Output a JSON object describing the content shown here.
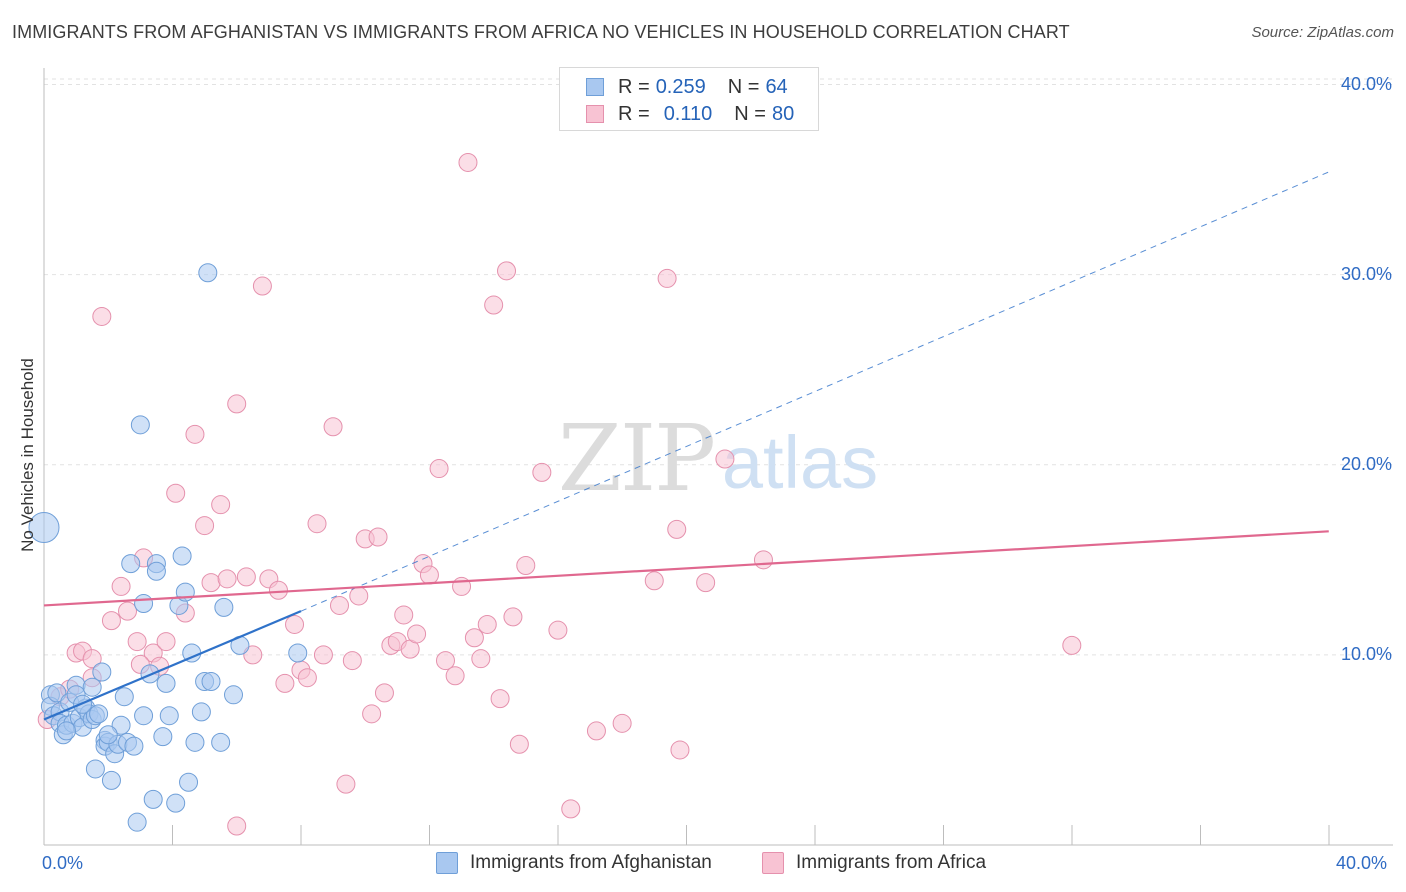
{
  "title": "IMMIGRANTS FROM AFGHANISTAN VS IMMIGRANTS FROM AFRICA NO VEHICLES IN HOUSEHOLD CORRELATION CHART",
  "source": "Source: ZipAtlas.com",
  "watermark": {
    "zip": "ZIP",
    "atlas": "atlas"
  },
  "legend": {
    "rows": [
      {
        "r_label": "R =",
        "r_value": "0.259",
        "n_label": "N =",
        "n_value": "64",
        "color": "#a9c8f0",
        "border": "#6f9fd8"
      },
      {
        "r_label": "R =",
        "r_value": "0.110",
        "n_label": "N =",
        "n_value": "80",
        "color": "#f8c3d3",
        "border": "#e591ad"
      }
    ]
  },
  "chart_data": {
    "type": "scatter",
    "title": "IMMIGRANTS FROM AFGHANISTAN VS IMMIGRANTS FROM AFRICA NO VEHICLES IN HOUSEHOLD CORRELATION CHART",
    "xlabel": "",
    "ylabel": "No Vehicles in Household",
    "xlim": [
      0,
      0.42
    ],
    "ylim": [
      0,
      0.405
    ],
    "x_ticks": [
      "0.0%",
      "40.0%"
    ],
    "y_ticks": [
      {
        "value": 0.1,
        "label": "10.0%"
      },
      {
        "value": 0.2,
        "label": "20.0%"
      },
      {
        "value": 0.3,
        "label": "30.0%"
      },
      {
        "value": 0.4,
        "label": "40.0%"
      }
    ],
    "grid": true,
    "legend_position": "bottom",
    "series": [
      {
        "name": "Immigrants from Afghanistan",
        "color": "#a9c8f0",
        "edge": "#6f9fd8",
        "trend": {
          "x0": 0.0,
          "y0": 0.066,
          "x1": 0.08,
          "y1": 0.123,
          "dash_to_x": 0.4,
          "dash_to_y": 0.354,
          "color": "#2f72c9"
        },
        "points": [
          [
            0.0,
            0.167
          ],
          [
            0.002,
            0.079
          ],
          [
            0.002,
            0.073
          ],
          [
            0.003,
            0.068
          ],
          [
            0.004,
            0.08
          ],
          [
            0.005,
            0.07
          ],
          [
            0.005,
            0.064
          ],
          [
            0.006,
            0.058
          ],
          [
            0.007,
            0.063
          ],
          [
            0.008,
            0.075
          ],
          [
            0.009,
            0.064
          ],
          [
            0.01,
            0.084
          ],
          [
            0.01,
            0.079
          ],
          [
            0.011,
            0.067
          ],
          [
            0.012,
            0.062
          ],
          [
            0.013,
            0.072
          ],
          [
            0.014,
            0.069
          ],
          [
            0.015,
            0.083
          ],
          [
            0.015,
            0.066
          ],
          [
            0.016,
            0.068
          ],
          [
            0.016,
            0.04
          ],
          [
            0.017,
            0.069
          ],
          [
            0.018,
            0.091
          ],
          [
            0.019,
            0.055
          ],
          [
            0.019,
            0.052
          ],
          [
            0.02,
            0.054
          ],
          [
            0.021,
            0.034
          ],
          [
            0.022,
            0.048
          ],
          [
            0.023,
            0.053
          ],
          [
            0.024,
            0.063
          ],
          [
            0.025,
            0.078
          ],
          [
            0.026,
            0.054
          ],
          [
            0.027,
            0.148
          ],
          [
            0.028,
            0.052
          ],
          [
            0.029,
            0.012
          ],
          [
            0.03,
            0.221
          ],
          [
            0.031,
            0.127
          ],
          [
            0.031,
            0.068
          ],
          [
            0.033,
            0.09
          ],
          [
            0.034,
            0.024
          ],
          [
            0.035,
            0.148
          ],
          [
            0.035,
            0.144
          ],
          [
            0.037,
            0.057
          ],
          [
            0.038,
            0.085
          ],
          [
            0.039,
            0.068
          ],
          [
            0.041,
            0.022
          ],
          [
            0.042,
            0.126
          ],
          [
            0.043,
            0.152
          ],
          [
            0.044,
            0.133
          ],
          [
            0.045,
            0.033
          ],
          [
            0.046,
            0.101
          ],
          [
            0.047,
            0.054
          ],
          [
            0.049,
            0.07
          ],
          [
            0.05,
            0.086
          ],
          [
            0.051,
            0.301
          ],
          [
            0.052,
            0.086
          ],
          [
            0.055,
            0.054
          ],
          [
            0.056,
            0.125
          ],
          [
            0.059,
            0.079
          ],
          [
            0.061,
            0.105
          ],
          [
            0.079,
            0.101
          ],
          [
            0.007,
            0.06
          ],
          [
            0.012,
            0.074
          ],
          [
            0.02,
            0.058
          ]
        ]
      },
      {
        "name": "Immigrants from Africa",
        "color": "#f8c3d3",
        "edge": "#e591ad",
        "trend": {
          "x0": 0.0,
          "y0": 0.126,
          "x1": 0.4,
          "y1": 0.165,
          "color": "#e0688f"
        },
        "points": [
          [
            0.001,
            0.066
          ],
          [
            0.005,
            0.078
          ],
          [
            0.008,
            0.082
          ],
          [
            0.01,
            0.101
          ],
          [
            0.012,
            0.102
          ],
          [
            0.015,
            0.098
          ],
          [
            0.018,
            0.278
          ],
          [
            0.021,
            0.118
          ],
          [
            0.024,
            0.136
          ],
          [
            0.026,
            0.123
          ],
          [
            0.029,
            0.107
          ],
          [
            0.031,
            0.151
          ],
          [
            0.034,
            0.101
          ],
          [
            0.036,
            0.094
          ],
          [
            0.038,
            0.107
          ],
          [
            0.041,
            0.185
          ],
          [
            0.044,
            0.122
          ],
          [
            0.047,
            0.216
          ],
          [
            0.05,
            0.168
          ],
          [
            0.052,
            0.138
          ],
          [
            0.055,
            0.179
          ],
          [
            0.057,
            0.14
          ],
          [
            0.06,
            0.232
          ],
          [
            0.063,
            0.141
          ],
          [
            0.065,
            0.1
          ],
          [
            0.068,
            0.294
          ],
          [
            0.07,
            0.14
          ],
          [
            0.073,
            0.134
          ],
          [
            0.075,
            0.085
          ],
          [
            0.078,
            0.116
          ],
          [
            0.08,
            0.092
          ],
          [
            0.082,
            0.088
          ],
          [
            0.085,
            0.169
          ],
          [
            0.087,
            0.1
          ],
          [
            0.09,
            0.22
          ],
          [
            0.092,
            0.126
          ],
          [
            0.094,
            0.032
          ],
          [
            0.096,
            0.097
          ],
          [
            0.098,
            0.131
          ],
          [
            0.1,
            0.161
          ],
          [
            0.102,
            0.069
          ],
          [
            0.104,
            0.162
          ],
          [
            0.106,
            0.08
          ],
          [
            0.108,
            0.105
          ],
          [
            0.11,
            0.107
          ],
          [
            0.112,
            0.121
          ],
          [
            0.114,
            0.103
          ],
          [
            0.116,
            0.111
          ],
          [
            0.118,
            0.148
          ],
          [
            0.12,
            0.142
          ],
          [
            0.123,
            0.198
          ],
          [
            0.125,
            0.097
          ],
          [
            0.128,
            0.089
          ],
          [
            0.13,
            0.136
          ],
          [
            0.132,
            0.359
          ],
          [
            0.134,
            0.109
          ],
          [
            0.136,
            0.098
          ],
          [
            0.138,
            0.116
          ],
          [
            0.14,
            0.284
          ],
          [
            0.142,
            0.077
          ],
          [
            0.144,
            0.302
          ],
          [
            0.146,
            0.12
          ],
          [
            0.148,
            0.053
          ],
          [
            0.15,
            0.147
          ],
          [
            0.155,
            0.196
          ],
          [
            0.16,
            0.113
          ],
          [
            0.164,
            0.019
          ],
          [
            0.172,
            0.06
          ],
          [
            0.18,
            0.064
          ],
          [
            0.19,
            0.139
          ],
          [
            0.194,
            0.298
          ],
          [
            0.197,
            0.166
          ],
          [
            0.198,
            0.05
          ],
          [
            0.206,
            0.138
          ],
          [
            0.212,
            0.203
          ],
          [
            0.224,
            0.15
          ],
          [
            0.32,
            0.105
          ],
          [
            0.03,
            0.095
          ],
          [
            0.06,
            0.01
          ],
          [
            0.015,
            0.088
          ]
        ]
      }
    ]
  }
}
